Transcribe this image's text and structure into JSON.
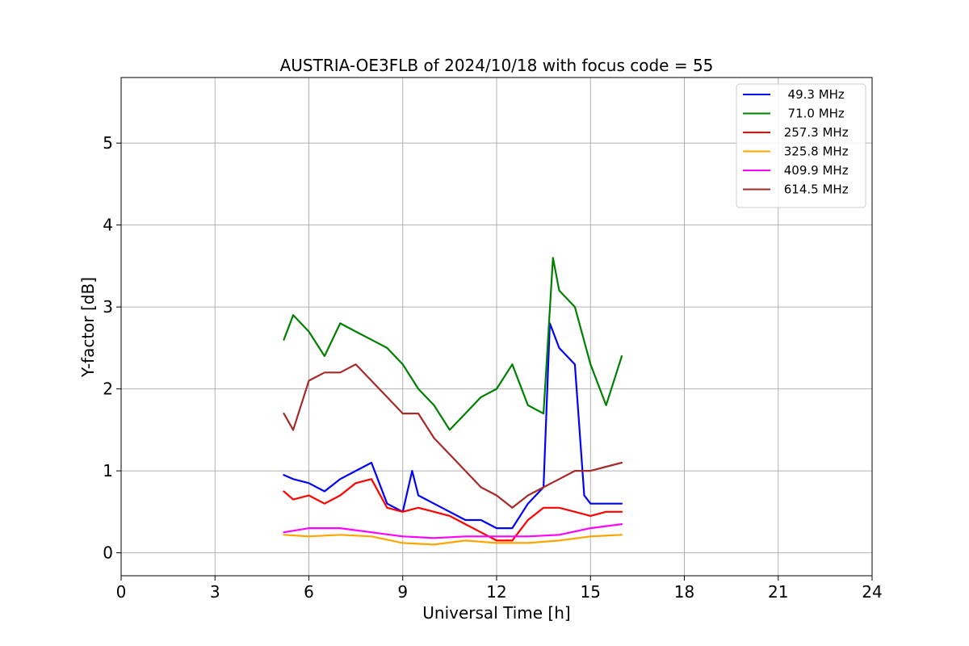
{
  "chart_data": {
    "type": "line",
    "title": "AUSTRIA-OE3FLB of 2024/10/18 with focus code = 55",
    "xlabel": "Universal Time [h]",
    "ylabel": "Y-factor [dB]",
    "xlim": [
      0,
      24
    ],
    "ylim": [
      -0.28,
      5.8
    ],
    "x_ticks": [
      0,
      3,
      6,
      9,
      12,
      15,
      18,
      21,
      24
    ],
    "y_ticks": [
      0,
      1,
      2,
      3,
      4,
      5
    ],
    "x_tick_labels": [
      "0",
      "3",
      "6",
      "9",
      "12",
      "15",
      "18",
      "21",
      "24"
    ],
    "y_tick_labels": [
      "0",
      "1",
      "2",
      "3",
      "4",
      "5"
    ],
    "grid": true,
    "legend_position": "top-right",
    "series": [
      {
        "name": "  49.3 MHz",
        "color": "#0000ff",
        "x": [
          5.2,
          5.5,
          6.0,
          6.5,
          7.0,
          7.5,
          8.0,
          8.5,
          9.0,
          9.3,
          9.5,
          10.0,
          10.5,
          11.0,
          11.5,
          12.0,
          12.5,
          13.0,
          13.5,
          13.7,
          14.0,
          14.5,
          14.8,
          15.0,
          15.5,
          16.0
        ],
        "y": [
          0.95,
          0.9,
          0.85,
          0.75,
          0.9,
          1.0,
          1.1,
          0.6,
          0.5,
          1.0,
          0.7,
          0.6,
          0.5,
          0.4,
          0.4,
          0.3,
          0.3,
          0.6,
          0.8,
          2.8,
          2.5,
          2.3,
          0.7,
          0.6,
          0.6,
          0.6
        ]
      },
      {
        "name": "  71.0 MHz",
        "color": "#008000",
        "x": [
          5.2,
          5.5,
          6.0,
          6.5,
          7.0,
          7.5,
          8.0,
          8.5,
          9.0,
          9.5,
          10.0,
          10.5,
          11.0,
          11.5,
          12.0,
          12.5,
          13.0,
          13.5,
          13.8,
          14.0,
          14.5,
          15.0,
          15.5,
          16.0
        ],
        "y": [
          2.6,
          2.9,
          2.7,
          2.4,
          2.8,
          2.7,
          2.6,
          2.5,
          2.3,
          2.0,
          1.8,
          1.5,
          1.7,
          1.9,
          2.0,
          2.3,
          1.8,
          1.7,
          3.6,
          3.2,
          3.0,
          2.3,
          1.8,
          2.4
        ]
      },
      {
        "name": " 257.3 MHz",
        "color": "#ff0000",
        "x": [
          5.2,
          5.5,
          6.0,
          6.5,
          7.0,
          7.5,
          8.0,
          8.5,
          9.0,
          9.5,
          10.0,
          10.5,
          11.0,
          11.5,
          12.0,
          12.5,
          13.0,
          13.5,
          14.0,
          14.5,
          15.0,
          15.5,
          16.0
        ],
        "y": [
          0.75,
          0.65,
          0.7,
          0.6,
          0.7,
          0.85,
          0.9,
          0.55,
          0.5,
          0.55,
          0.5,
          0.45,
          0.35,
          0.25,
          0.15,
          0.15,
          0.4,
          0.55,
          0.55,
          0.5,
          0.45,
          0.5,
          0.5
        ]
      },
      {
        "name": " 325.8 MHz",
        "color": "#ffa500",
        "x": [
          5.2,
          6.0,
          7.0,
          8.0,
          9.0,
          10.0,
          11.0,
          12.0,
          13.0,
          14.0,
          15.0,
          16.0
        ],
        "y": [
          0.22,
          0.2,
          0.22,
          0.2,
          0.12,
          0.1,
          0.15,
          0.12,
          0.12,
          0.15,
          0.2,
          0.22
        ]
      },
      {
        "name": " 409.9 MHz",
        "color": "#ff00ff",
        "x": [
          5.2,
          6.0,
          7.0,
          8.0,
          9.0,
          10.0,
          11.0,
          12.0,
          13.0,
          14.0,
          15.0,
          16.0
        ],
        "y": [
          0.25,
          0.3,
          0.3,
          0.25,
          0.2,
          0.18,
          0.2,
          0.2,
          0.2,
          0.22,
          0.3,
          0.35
        ]
      },
      {
        "name": " 614.5 MHz",
        "color": "#a52a2a",
        "x": [
          5.2,
          5.5,
          6.0,
          6.5,
          7.0,
          7.5,
          8.0,
          8.5,
          9.0,
          9.5,
          10.0,
          10.5,
          11.0,
          11.5,
          12.0,
          12.5,
          13.0,
          13.5,
          14.0,
          14.5,
          15.0,
          15.5,
          16.0
        ],
        "y": [
          1.7,
          1.5,
          2.1,
          2.2,
          2.2,
          2.3,
          2.1,
          1.9,
          1.7,
          1.7,
          1.4,
          1.2,
          1.0,
          0.8,
          0.7,
          0.55,
          0.7,
          0.8,
          0.9,
          1.0,
          1.0,
          1.05,
          1.1
        ]
      }
    ]
  }
}
